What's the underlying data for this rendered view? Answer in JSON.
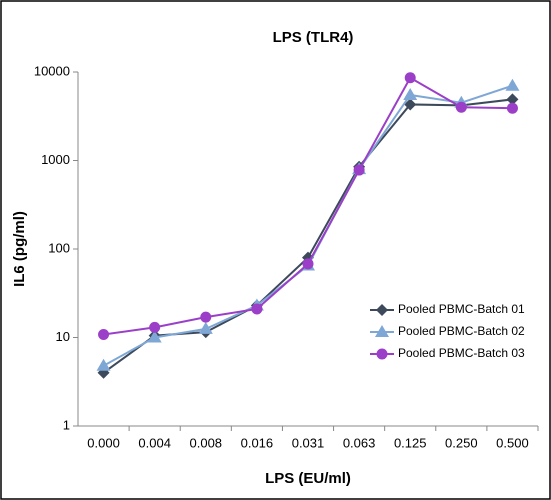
{
  "chart_data": {
    "type": "line",
    "title": "LPS (TLR4)",
    "x_label": "LPS (EU/ml)",
    "y_label": "IL6 (pg/ml)",
    "categories": [
      "0.000",
      "0.004",
      "0.008",
      "0.016",
      "0.031",
      "0.063",
      "0.125",
      "0.250",
      "0.500"
    ],
    "series": [
      {
        "name": "Pooled PBMC-Batch 01",
        "color": "#3d4a5c",
        "marker": "diamond",
        "values": [
          4,
          10.5,
          11.5,
          23,
          80,
          850,
          4300,
          4200,
          4900
        ]
      },
      {
        "name": "Pooled PBMC-Batch 02",
        "color": "#7fa7d6",
        "marker": "triangle",
        "values": [
          4.8,
          10,
          12.5,
          23,
          65,
          800,
          5500,
          4500,
          7000
        ]
      },
      {
        "name": "Pooled PBMC-Batch 03",
        "color": "#9b3fc8",
        "marker": "circle",
        "values": [
          10.8,
          13,
          17,
          21,
          68,
          780,
          8600,
          4000,
          3900
        ]
      }
    ],
    "ylim": [
      1,
      10000
    ],
    "yticks": [
      1,
      10,
      100,
      1000,
      10000
    ],
    "log_scale": true,
    "grid": false,
    "legend": "right"
  }
}
